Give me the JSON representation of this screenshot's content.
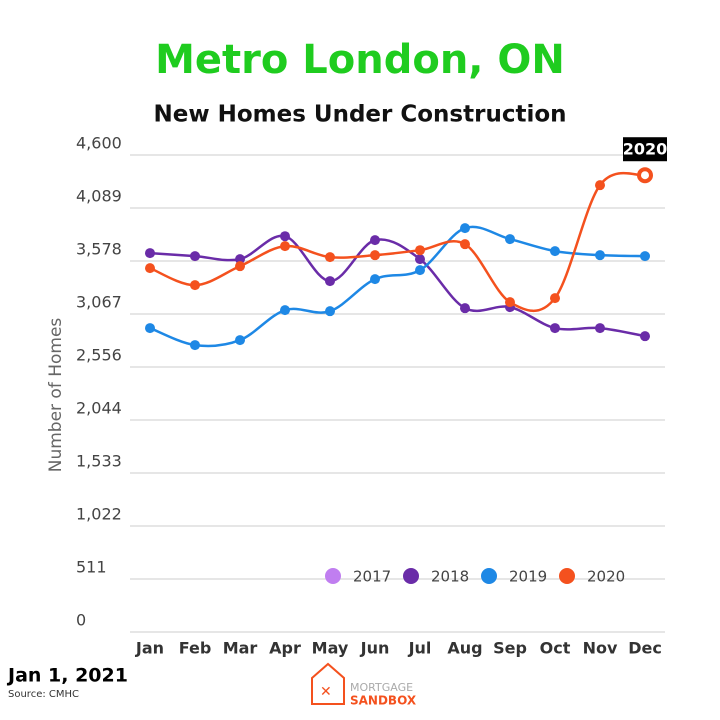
{
  "chart_data": {
    "type": "line",
    "title": "Metro London, ON",
    "subtitle": "New Homes Under Construction",
    "y_label": "Number of Homes",
    "annotation": "2020",
    "date": "Jan 1, 2021",
    "source": "Source: CMHC",
    "logo": [
      "MORTGAGE",
      "SANDBOX"
    ],
    "categories": [
      "Jan",
      "Feb",
      "Mar",
      "Apr",
      "May",
      "Jun",
      "Jul",
      "Aug",
      "Sep",
      "Oct",
      "Nov",
      "Dec"
    ],
    "series": [
      {
        "name": "2017",
        "color": "#c07ef0",
        "values": [
          null,
          null,
          null,
          null,
          null,
          null,
          null,
          null,
          null,
          null,
          null,
          null
        ]
      },
      {
        "name": "2018",
        "color": "#6a2ca8",
        "values": [
          3654,
          3625,
          3596,
          3817,
          3384,
          3779,
          3596,
          3123,
          3133,
          2931,
          2931,
          2853
        ]
      },
      {
        "name": "2019",
        "color": "#1e88e5",
        "values": [
          2931,
          2767,
          2815,
          3104,
          3094,
          3403,
          3490,
          3895,
          3789,
          3673,
          3634,
          3625
        ]
      },
      {
        "name": "2020",
        "color": "#f4511e",
        "values": [
          3509,
          3345,
          3528,
          3721,
          3615,
          3634,
          3682,
          3740,
          3181,
          3220,
          4309,
          4405
        ]
      }
    ],
    "ylim": [
      0,
      4600
    ],
    "yticks": [
      0,
      511,
      {
        "value": 1022,
        "label": "1,022"
      },
      {
        "value": 1533,
        "label": "1,533"
      },
      {
        "value": 2044,
        "label": "2,044"
      },
      {
        "value": 2556,
        "label": "2,556"
      },
      {
        "value": 3067,
        "label": "3,067"
      },
      {
        "value": 3578,
        "label": "3,578"
      },
      {
        "value": 4089,
        "label": "4,089"
      },
      {
        "value": 4600,
        "label": "4,600"
      }
    ],
    "grid": true
  }
}
